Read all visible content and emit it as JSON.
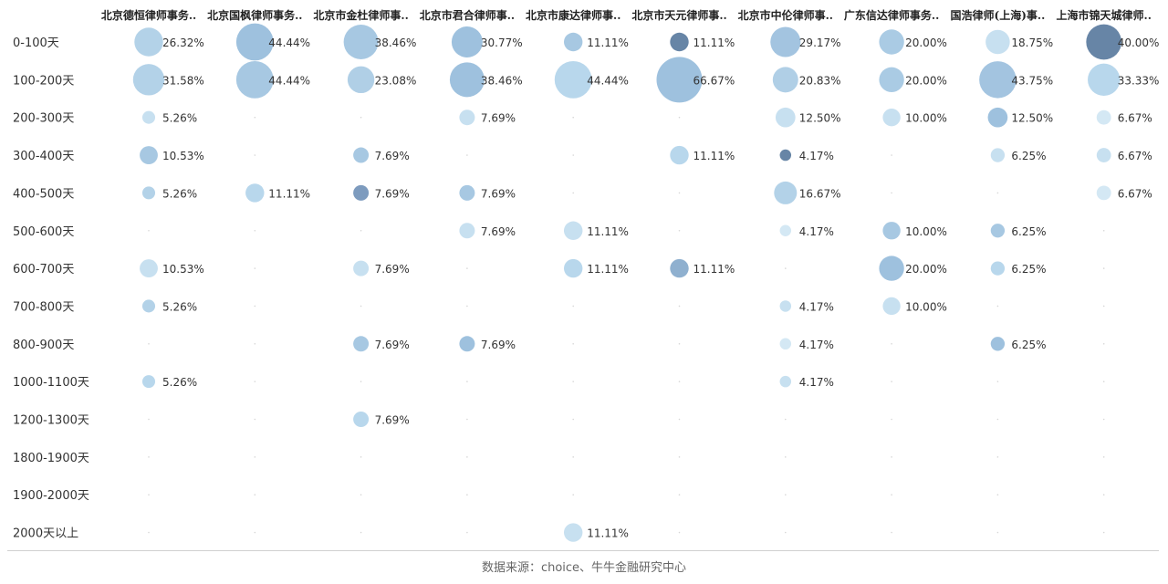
{
  "chart_data": {
    "type": "bubble-matrix",
    "columns": [
      "北京德恒律师事务..",
      "北京国枫律师事务..",
      "北京市金杜律师事..",
      "北京市君合律师事..",
      "北京市康达律师事..",
      "北京市天元律师事..",
      "北京市中伦律师事..",
      "广东信达律师事务..",
      "国浩律师(上海)事..",
      "上海市锦天城律师.."
    ],
    "rows": [
      "0-100天",
      "100-200天",
      "200-300天",
      "300-400天",
      "400-500天",
      "500-600天",
      "600-700天",
      "700-800天",
      "800-900天",
      "1000-1100天",
      "1200-1300天",
      "1800-1900天",
      "1900-2000天",
      "2000天以上"
    ],
    "cells": [
      {
        "row": 0,
        "col": 0,
        "value": 26.32,
        "label": "26.32%",
        "color": "#b3d2e8"
      },
      {
        "row": 0,
        "col": 1,
        "value": 44.44,
        "label": "44.44%",
        "color": "#9ec1de"
      },
      {
        "row": 0,
        "col": 2,
        "value": 38.46,
        "label": "38.46%",
        "color": "#a7c8e2"
      },
      {
        "row": 0,
        "col": 3,
        "value": 30.77,
        "label": "30.77%",
        "color": "#9ec1de"
      },
      {
        "row": 0,
        "col": 4,
        "value": 11.11,
        "label": "11.11%",
        "color": "#a7c8e2"
      },
      {
        "row": 0,
        "col": 5,
        "value": 11.11,
        "label": "11.11%",
        "color": "#6785a6"
      },
      {
        "row": 0,
        "col": 6,
        "value": 29.17,
        "label": "29.17%",
        "color": "#a3c4e0"
      },
      {
        "row": 0,
        "col": 7,
        "value": 20.0,
        "label": "20.00%",
        "color": "#aacbe4"
      },
      {
        "row": 0,
        "col": 8,
        "value": 18.75,
        "label": "18.75%",
        "color": "#c7e0f0"
      },
      {
        "row": 0,
        "col": 9,
        "value": 40.0,
        "label": "40.00%",
        "color": "#6785a6"
      },
      {
        "row": 1,
        "col": 0,
        "value": 31.58,
        "label": "31.58%",
        "color": "#b3d2e8"
      },
      {
        "row": 1,
        "col": 1,
        "value": 44.44,
        "label": "44.44%",
        "color": "#a7c8e2"
      },
      {
        "row": 1,
        "col": 2,
        "value": 23.08,
        "label": "23.08%",
        "color": "#b0cfe6"
      },
      {
        "row": 1,
        "col": 3,
        "value": 38.46,
        "label": "38.46%",
        "color": "#9ec1de"
      },
      {
        "row": 1,
        "col": 4,
        "value": 44.44,
        "label": "44.44%",
        "color": "#b8d7ec"
      },
      {
        "row": 1,
        "col": 5,
        "value": 66.67,
        "label": "66.67%",
        "color": "#9ec1de"
      },
      {
        "row": 1,
        "col": 6,
        "value": 20.83,
        "label": "20.83%",
        "color": "#b0cfe6"
      },
      {
        "row": 1,
        "col": 7,
        "value": 20.0,
        "label": "20.00%",
        "color": "#aacbe4"
      },
      {
        "row": 1,
        "col": 8,
        "value": 43.75,
        "label": "43.75%",
        "color": "#a3c4e0"
      },
      {
        "row": 1,
        "col": 9,
        "value": 33.33,
        "label": "33.33%",
        "color": "#b8d7ec"
      },
      {
        "row": 2,
        "col": 0,
        "value": 5.26,
        "label": "5.26%",
        "color": "#c7e0f0"
      },
      {
        "row": 2,
        "col": 3,
        "value": 7.69,
        "label": "7.69%",
        "color": "#c7e0f0"
      },
      {
        "row": 2,
        "col": 6,
        "value": 12.5,
        "label": "12.50%",
        "color": "#c7e0f0"
      },
      {
        "row": 2,
        "col": 7,
        "value": 10.0,
        "label": "10.00%",
        "color": "#c7e0f0"
      },
      {
        "row": 2,
        "col": 8,
        "value": 12.5,
        "label": "12.50%",
        "color": "#9ec1de"
      },
      {
        "row": 2,
        "col": 9,
        "value": 6.67,
        "label": "6.67%",
        "color": "#d4e8f4"
      },
      {
        "row": 3,
        "col": 0,
        "value": 10.53,
        "label": "10.53%",
        "color": "#a7c8e2"
      },
      {
        "row": 3,
        "col": 2,
        "value": 7.69,
        "label": "7.69%",
        "color": "#a7c8e2"
      },
      {
        "row": 3,
        "col": 5,
        "value": 11.11,
        "label": "11.11%",
        "color": "#b8d7ec"
      },
      {
        "row": 3,
        "col": 6,
        "value": 4.17,
        "label": "4.17%",
        "color": "#6785a6"
      },
      {
        "row": 3,
        "col": 8,
        "value": 6.25,
        "label": "6.25%",
        "color": "#c7e0f0"
      },
      {
        "row": 3,
        "col": 9,
        "value": 6.67,
        "label": "6.67%",
        "color": "#c7e0f0"
      },
      {
        "row": 4,
        "col": 0,
        "value": 5.26,
        "label": "5.26%",
        "color": "#b3d2e8"
      },
      {
        "row": 4,
        "col": 1,
        "value": 11.11,
        "label": "11.11%",
        "color": "#b8d7ec"
      },
      {
        "row": 4,
        "col": 2,
        "value": 7.69,
        "label": "7.69%",
        "color": "#7d9bbe"
      },
      {
        "row": 4,
        "col": 3,
        "value": 7.69,
        "label": "7.69%",
        "color": "#a7c8e2"
      },
      {
        "row": 4,
        "col": 6,
        "value": 16.67,
        "label": "16.67%",
        "color": "#b3d2e8"
      },
      {
        "row": 4,
        "col": 9,
        "value": 6.67,
        "label": "6.67%",
        "color": "#d4e8f4"
      },
      {
        "row": 5,
        "col": 3,
        "value": 7.69,
        "label": "7.69%",
        "color": "#c7e0f0"
      },
      {
        "row": 5,
        "col": 4,
        "value": 11.11,
        "label": "11.11%",
        "color": "#c7e0f0"
      },
      {
        "row": 5,
        "col": 6,
        "value": 4.17,
        "label": "4.17%",
        "color": "#d4e8f4"
      },
      {
        "row": 5,
        "col": 7,
        "value": 10.0,
        "label": "10.00%",
        "color": "#a7c8e2"
      },
      {
        "row": 5,
        "col": 8,
        "value": 6.25,
        "label": "6.25%",
        "color": "#a7c8e2"
      },
      {
        "row": 6,
        "col": 0,
        "value": 10.53,
        "label": "10.53%",
        "color": "#c7e0f0"
      },
      {
        "row": 6,
        "col": 2,
        "value": 7.69,
        "label": "7.69%",
        "color": "#c7e0f0"
      },
      {
        "row": 6,
        "col": 4,
        "value": 11.11,
        "label": "11.11%",
        "color": "#b8d7ec"
      },
      {
        "row": 6,
        "col": 5,
        "value": 11.11,
        "label": "11.11%",
        "color": "#8fb0cf"
      },
      {
        "row": 6,
        "col": 7,
        "value": 20.0,
        "label": "20.00%",
        "color": "#9ec1de"
      },
      {
        "row": 6,
        "col": 8,
        "value": 6.25,
        "label": "6.25%",
        "color": "#b8d7ec"
      },
      {
        "row": 7,
        "col": 0,
        "value": 5.26,
        "label": "5.26%",
        "color": "#b3d2e8"
      },
      {
        "row": 7,
        "col": 6,
        "value": 4.17,
        "label": "4.17%",
        "color": "#c7e0f0"
      },
      {
        "row": 7,
        "col": 7,
        "value": 10.0,
        "label": "10.00%",
        "color": "#c7e0f0"
      },
      {
        "row": 8,
        "col": 2,
        "value": 7.69,
        "label": "7.69%",
        "color": "#a7c8e2"
      },
      {
        "row": 8,
        "col": 3,
        "value": 7.69,
        "label": "7.69%",
        "color": "#9ec1de"
      },
      {
        "row": 8,
        "col": 6,
        "value": 4.17,
        "label": "4.17%",
        "color": "#d4e8f4"
      },
      {
        "row": 8,
        "col": 8,
        "value": 6.25,
        "label": "6.25%",
        "color": "#9ec1de"
      },
      {
        "row": 9,
        "col": 0,
        "value": 5.26,
        "label": "5.26%",
        "color": "#b8d7ec"
      },
      {
        "row": 9,
        "col": 6,
        "value": 4.17,
        "label": "4.17%",
        "color": "#c7e0f0"
      },
      {
        "row": 10,
        "col": 2,
        "value": 7.69,
        "label": "7.69%",
        "color": "#b8d7ec"
      },
      {
        "row": 13,
        "col": 4,
        "value": 11.11,
        "label": "11.11%",
        "color": "#c7e0f0"
      }
    ],
    "empty_marker_color": "#d6d6d6"
  },
  "source": "数据来源：choice、牛牛金融研究中心"
}
